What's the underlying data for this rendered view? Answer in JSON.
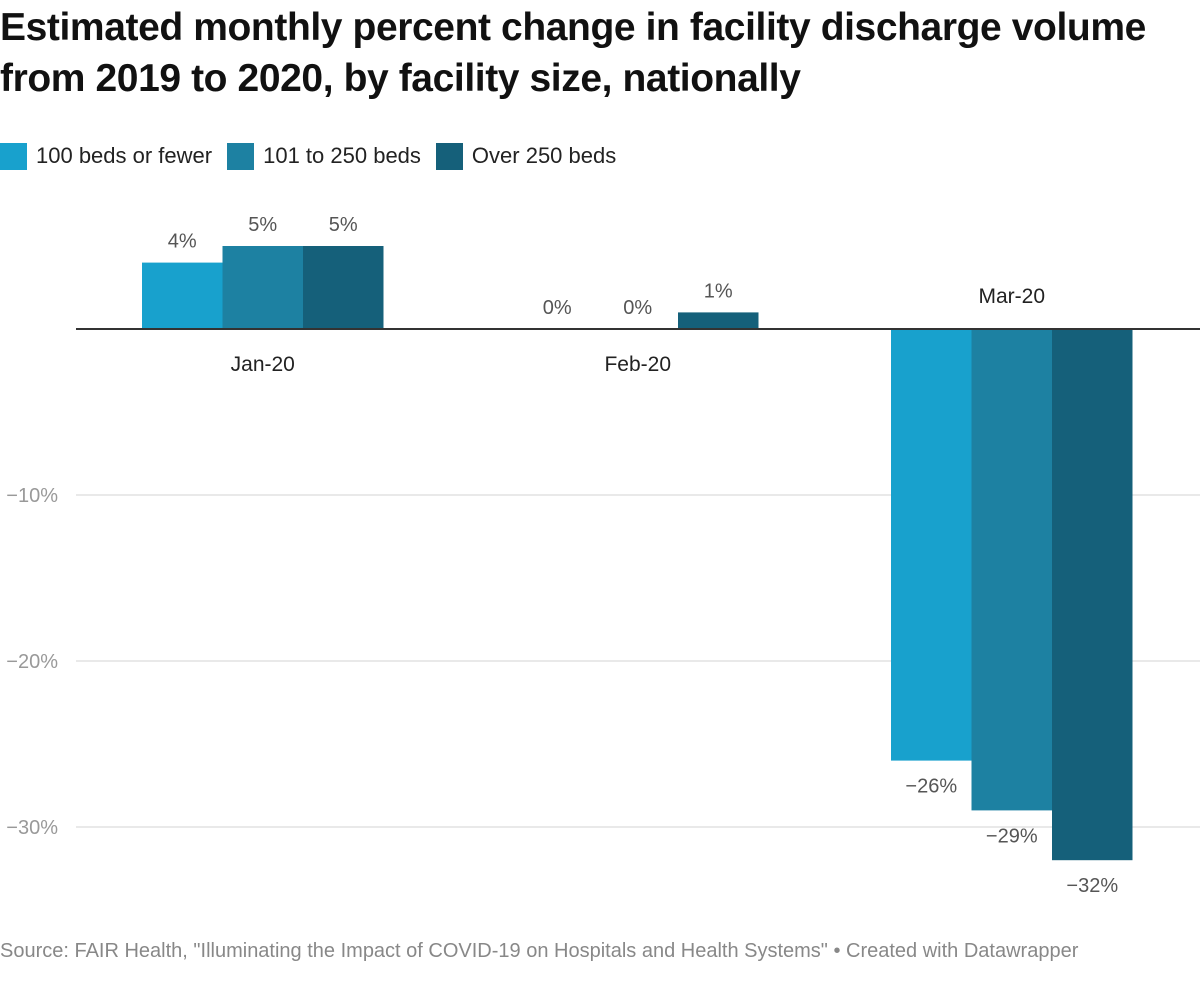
{
  "title": "Estimated monthly percent change in facility discharge volume from 2019 to 2020, by facility size, nationally",
  "source": "Source: FAIR Health, \"Illuminating the Impact of COVID-19 on Hospitals and Health Systems\" • Created with Datawrapper",
  "chart_data": {
    "type": "bar",
    "title": "Estimated monthly percent change in facility discharge volume from 2019 to 2020, by facility size, nationally",
    "xlabel": "",
    "ylabel": "",
    "categories": [
      "Jan-20",
      "Feb-20",
      "Mar-20"
    ],
    "series": [
      {
        "name": "100 beds or fewer",
        "color": "#18a1cd",
        "values": [
          4,
          0,
          -26
        ],
        "labels": [
          "4%",
          "0%",
          "−26%"
        ]
      },
      {
        "name": "101 to 250 beds",
        "color": "#1d81a2",
        "values": [
          5,
          0,
          -29
        ],
        "labels": [
          "5%",
          "0%",
          "−29%"
        ]
      },
      {
        "name": "Over 250 beds",
        "color": "#15607a",
        "values": [
          5,
          1,
          -32
        ],
        "labels": [
          "5%",
          "1%",
          "−32%"
        ]
      }
    ],
    "ylim": [
      -34,
      7
    ],
    "yticks": [
      -10,
      -20,
      -30
    ],
    "ytick_labels": [
      "−10%",
      "−20%",
      "−30%"
    ],
    "grid": true,
    "legend_position": "top-left"
  }
}
